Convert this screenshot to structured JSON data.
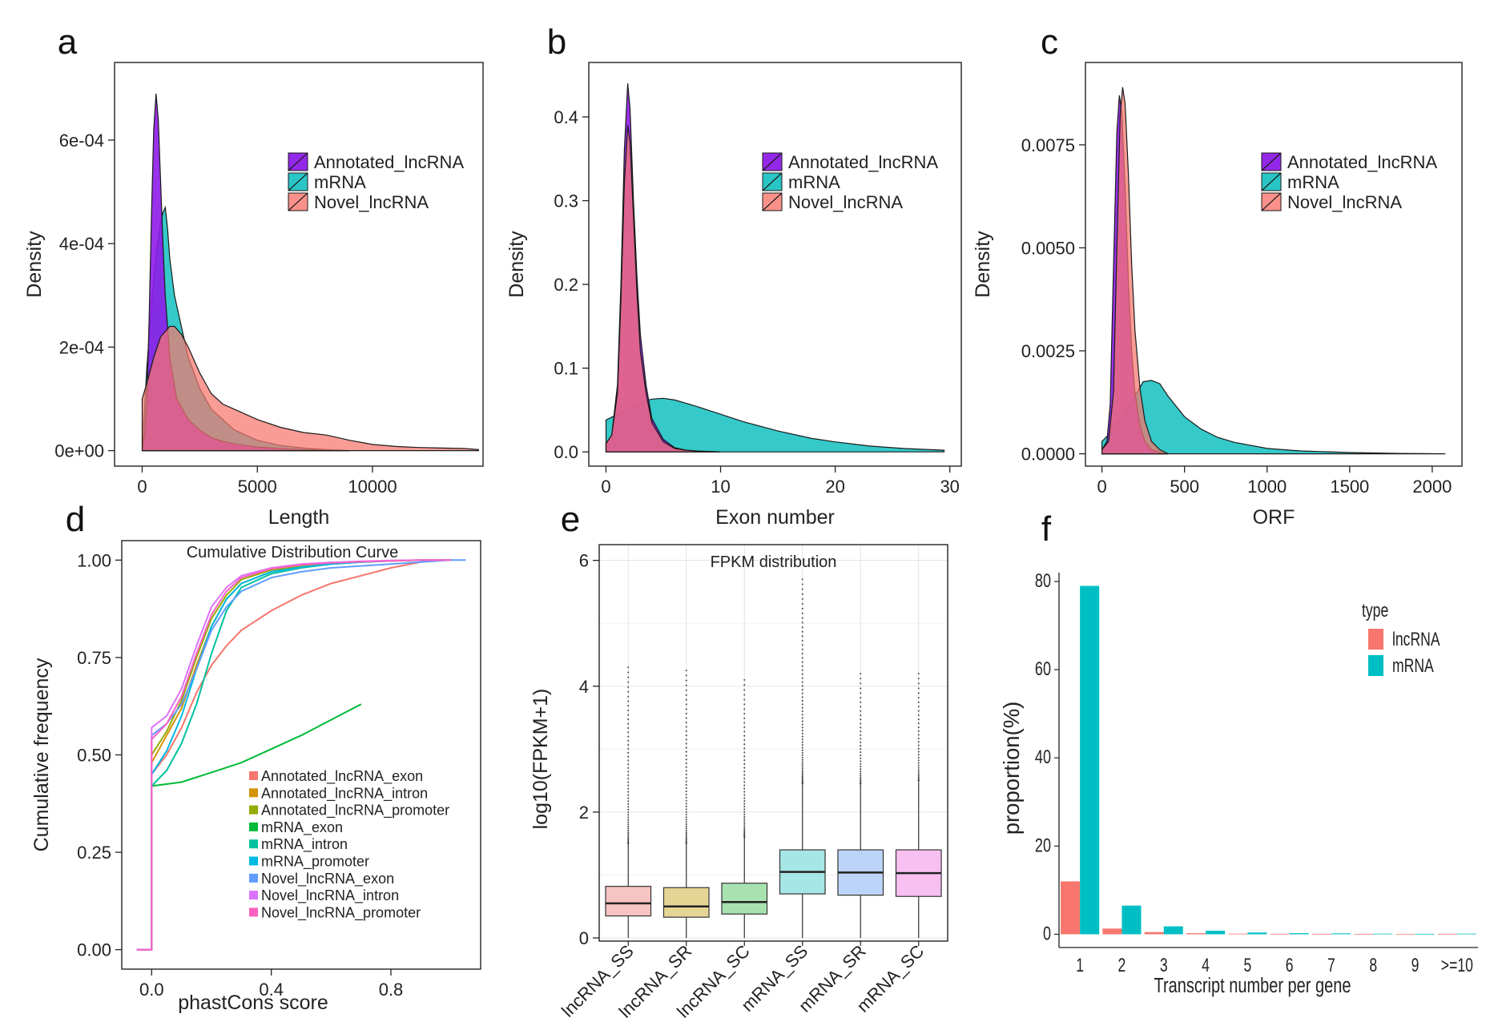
{
  "chart_data": [
    {
      "panel": "a",
      "type": "area",
      "xlabel": "Length",
      "ylabel": "Density",
      "xticks": [
        "0",
        "5000",
        "10000"
      ],
      "yticks": [
        "0e+00",
        "2e-04",
        "4e-04",
        "6e-04"
      ],
      "xlim": [
        -1200,
        14800
      ],
      "ylim": [
        -3e-05,
        0.00075
      ],
      "legend_position": "top-right",
      "series": [
        {
          "name": "Annotated_lncRNA",
          "color": "#8e1ce8",
          "x": [
            0,
            100,
            200,
            300,
            400,
            500,
            600,
            700,
            800,
            900,
            1000,
            1200,
            1500,
            2000,
            2500,
            3000,
            3500,
            4000,
            4500,
            5000,
            6000,
            7000,
            8000,
            9000
          ],
          "y": [
            0.0,
            3e-05,
            0.0001,
            0.00025,
            0.00045,
            0.00062,
            0.00069,
            0.00064,
            0.00052,
            0.0004,
            0.0003,
            0.00018,
            0.0001,
            6e-05,
            4e-05,
            2.5e-05,
            1.8e-05,
            1.3e-05,
            1e-05,
            7e-06,
            4e-06,
            2e-06,
            1e-06,
            0.0
          ]
        },
        {
          "name": "mRNA",
          "color": "#1fc3c3",
          "x": [
            0,
            100,
            200,
            400,
            600,
            800,
            900,
            1000,
            1100,
            1200,
            1400,
            1600,
            1800,
            2000,
            2500,
            3000,
            3500,
            4000,
            5000,
            6000,
            7000,
            8000,
            9000
          ],
          "y": [
            0.0,
            8e-05,
            0.00016,
            0.00028,
            0.00038,
            0.00044,
            0.00046,
            0.00047,
            0.00043,
            0.00037,
            0.0003,
            0.00026,
            0.00022,
            0.00018,
            0.00012,
            8e-05,
            6e-05,
            4e-05,
            2e-05,
            1e-05,
            5e-06,
            2e-06,
            0.0
          ]
        },
        {
          "name": "Novel_lncRNA",
          "color": "#f8766d",
          "x": [
            0,
            200,
            500,
            800,
            1000,
            1200,
            1400,
            1700,
            2000,
            2500,
            3000,
            3500,
            4000,
            5000,
            6000,
            7000,
            8000,
            9000,
            10000,
            11000,
            12000,
            13000,
            14000,
            14600
          ],
          "y": [
            0.0001,
            0.00013,
            0.00018,
            0.00022,
            0.00023,
            0.00024,
            0.00024,
            0.000225,
            0.0002,
            0.00015,
            0.00011,
            9e-05,
            8e-05,
            6e-05,
            4.5e-05,
            3.5e-05,
            3e-05,
            2e-05,
            1.2e-05,
            8e-06,
            6e-06,
            5e-06,
            4e-06,
            2e-06
          ]
        }
      ]
    },
    {
      "panel": "b",
      "type": "area",
      "xlabel": "Exon number",
      "ylabel": "Density",
      "xticks": [
        "0",
        "10",
        "20",
        "30"
      ],
      "yticks": [
        "0.0",
        "0.1",
        "0.2",
        "0.3",
        "0.4"
      ],
      "xlim": [
        -1.5,
        31
      ],
      "ylim": [
        -0.017,
        0.465
      ],
      "legend_position": "top-right",
      "series": [
        {
          "name": "Annotated_lncRNA",
          "color": "#8e1ce8",
          "x": [
            0,
            0.5,
            1,
            1.3,
            1.6,
            1.9,
            2.1,
            2.4,
            2.7,
            3.0,
            3.5,
            4,
            5,
            6,
            7,
            8,
            10
          ],
          "y": [
            0.01,
            0.02,
            0.08,
            0.2,
            0.36,
            0.44,
            0.41,
            0.3,
            0.21,
            0.14,
            0.08,
            0.04,
            0.015,
            0.005,
            0.002,
            0.001,
            0.0
          ]
        },
        {
          "name": "mRNA",
          "color": "#1fc3c3",
          "x": [
            0,
            1,
            2,
            3,
            4,
            5,
            6,
            8,
            10,
            12,
            15,
            18,
            20,
            23,
            26,
            29.5
          ],
          "y": [
            0.038,
            0.045,
            0.052,
            0.059,
            0.063,
            0.064,
            0.062,
            0.054,
            0.045,
            0.036,
            0.025,
            0.016,
            0.012,
            0.007,
            0.004,
            0.002
          ]
        },
        {
          "name": "Novel_lncRNA",
          "color": "#f8766d",
          "x": [
            0,
            0.5,
            1,
            1.3,
            1.6,
            1.9,
            2.1,
            2.4,
            2.7,
            3.0,
            3.5,
            4,
            5,
            6,
            7,
            8,
            10
          ],
          "y": [
            0.01,
            0.02,
            0.07,
            0.18,
            0.32,
            0.39,
            0.37,
            0.28,
            0.19,
            0.12,
            0.07,
            0.035,
            0.012,
            0.004,
            0.002,
            0.001,
            0.0
          ]
        }
      ]
    },
    {
      "panel": "c",
      "type": "area",
      "xlabel": "ORF",
      "ylabel": "Density",
      "xticks": [
        "0",
        "500",
        "1000",
        "1500",
        "2000"
      ],
      "yticks": [
        "0.0000",
        "0.0025",
        "0.0050",
        "0.0075"
      ],
      "xlim": [
        -100,
        2180
      ],
      "ylim": [
        -0.0003,
        0.0095
      ],
      "legend_position": "top-right",
      "series": [
        {
          "name": "Annotated_lncRNA",
          "color": "#8e1ce8",
          "x": [
            0,
            30,
            50,
            70,
            90,
            105,
            120,
            140,
            160,
            180,
            200,
            230,
            260,
            300,
            350,
            400
          ],
          "y": [
            0.0001,
            0.0003,
            0.0012,
            0.0045,
            0.0078,
            0.0087,
            0.0083,
            0.0065,
            0.0042,
            0.0025,
            0.0015,
            0.0007,
            0.0003,
            0.0001,
            3e-05,
            0.0
          ]
        },
        {
          "name": "mRNA",
          "color": "#1fc3c3",
          "x": [
            0,
            50,
            100,
            150,
            200,
            250,
            300,
            350,
            400,
            500,
            600,
            700,
            800,
            1000,
            1200,
            1500,
            1800,
            2080
          ],
          "y": [
            0.0003,
            0.0005,
            0.0008,
            0.0011,
            0.0014,
            0.00175,
            0.00178,
            0.0017,
            0.0014,
            0.0009,
            0.0006,
            0.0004,
            0.00028,
            0.00013,
            7e-05,
            3e-05,
            1e-05,
            0.0
          ]
        },
        {
          "name": "Novel_lncRNA",
          "color": "#f8766d",
          "x": [
            0,
            40,
            70,
            90,
            110,
            125,
            140,
            160,
            180,
            200,
            230,
            260,
            300,
            350,
            400
          ],
          "y": [
            0.0001,
            0.0003,
            0.0015,
            0.005,
            0.0082,
            0.0089,
            0.0085,
            0.0068,
            0.0046,
            0.003,
            0.0016,
            0.0008,
            0.0003,
            0.0001,
            0.0
          ]
        }
      ]
    },
    {
      "panel": "d",
      "type": "line",
      "title": "Cumulative Distribution Curve",
      "xlabel": "phastCons score",
      "ylabel": "Cumulative frequency",
      "xticks": [
        "0.0",
        "0.4",
        "0.8"
      ],
      "yticks": [
        "0.00",
        "0.25",
        "0.50",
        "0.75",
        "1.00"
      ],
      "xlim": [
        -0.1,
        1.1
      ],
      "ylim": [
        -0.05,
        1.05
      ],
      "legend_position": "bottom-right",
      "series": [
        {
          "name": "Annotated_lncRNA_exon",
          "color": "#f8766d",
          "x": [
            -0.05,
            0,
            0,
            0.05,
            0.1,
            0.15,
            0.2,
            0.25,
            0.3,
            0.4,
            0.5,
            0.6,
            0.7,
            0.8,
            0.9,
            0.95
          ],
          "y": [
            0,
            0,
            0.45,
            0.5,
            0.57,
            0.66,
            0.73,
            0.78,
            0.82,
            0.87,
            0.91,
            0.94,
            0.96,
            0.98,
            0.995,
            1.0
          ]
        },
        {
          "name": "Annotated_lncRNA_intron",
          "color": "#d39200",
          "x": [
            -0.05,
            0,
            0,
            0.05,
            0.1,
            0.15,
            0.2,
            0.25,
            0.3,
            0.4,
            0.5,
            0.6,
            0.7,
            0.8,
            0.9,
            1.0
          ],
          "y": [
            0,
            0,
            0.48,
            0.55,
            0.62,
            0.73,
            0.83,
            0.9,
            0.94,
            0.97,
            0.985,
            0.99,
            0.995,
            0.998,
            1.0,
            1.0
          ]
        },
        {
          "name": "Annotated_lncRNA_promoter",
          "color": "#93aa00",
          "x": [
            -0.05,
            0,
            0,
            0.05,
            0.1,
            0.15,
            0.2,
            0.25,
            0.3,
            0.4,
            0.5,
            0.6,
            0.7,
            0.8,
            0.9,
            1.0
          ],
          "y": [
            0,
            0,
            0.5,
            0.56,
            0.64,
            0.75,
            0.85,
            0.91,
            0.95,
            0.975,
            0.985,
            0.99,
            0.995,
            0.998,
            1.0,
            1.0
          ]
        },
        {
          "name": "mRNA_exon",
          "color": "#00ba38",
          "x": [
            -0.05,
            0,
            0,
            0.1,
            0.2,
            0.3,
            0.4,
            0.5,
            0.6,
            0.7
          ],
          "y": [
            0,
            0,
            0.42,
            0.43,
            0.455,
            0.48,
            0.515,
            0.55,
            0.59,
            0.63
          ]
        },
        {
          "name": "mRNA_intron",
          "color": "#00c19f",
          "x": [
            -0.05,
            0,
            0,
            0.05,
            0.1,
            0.15,
            0.2,
            0.25,
            0.3,
            0.4,
            0.5,
            0.6,
            0.7,
            0.8,
            0.9,
            1.0
          ],
          "y": [
            0,
            0,
            0.42,
            0.46,
            0.53,
            0.63,
            0.76,
            0.87,
            0.93,
            0.965,
            0.98,
            0.99,
            0.995,
            0.998,
            1.0,
            1.0
          ]
        },
        {
          "name": "mRNA_promoter",
          "color": "#00b9e3",
          "x": [
            -0.05,
            0,
            0,
            0.05,
            0.1,
            0.15,
            0.2,
            0.25,
            0.3,
            0.4,
            0.5,
            0.6,
            0.7,
            0.8,
            0.9,
            1.0
          ],
          "y": [
            0,
            0,
            0.45,
            0.51,
            0.6,
            0.72,
            0.83,
            0.9,
            0.94,
            0.97,
            0.982,
            0.99,
            0.995,
            0.998,
            1.0,
            1.0
          ]
        },
        {
          "name": "Novel_lncRNA_exon",
          "color": "#619cff",
          "x": [
            -0.05,
            0,
            0,
            0.05,
            0.1,
            0.15,
            0.2,
            0.25,
            0.3,
            0.4,
            0.5,
            0.6,
            0.7,
            0.8,
            0.9,
            1.0,
            1.05
          ],
          "y": [
            0,
            0,
            0.55,
            0.58,
            0.63,
            0.72,
            0.82,
            0.88,
            0.92,
            0.955,
            0.97,
            0.98,
            0.985,
            0.99,
            0.995,
            1.0,
            1.0
          ]
        },
        {
          "name": "Novel_lncRNA_intron",
          "color": "#db72fb",
          "x": [
            -0.05,
            0,
            0,
            0.05,
            0.1,
            0.15,
            0.2,
            0.25,
            0.3,
            0.4,
            0.5,
            0.6,
            0.7,
            0.8,
            0.9,
            1.0
          ],
          "y": [
            0,
            0,
            0.57,
            0.6,
            0.67,
            0.78,
            0.88,
            0.93,
            0.96,
            0.98,
            0.99,
            0.994,
            0.997,
            0.999,
            1.0,
            1.0
          ]
        },
        {
          "name": "Novel_lncRNA_promoter",
          "color": "#ff61c3",
          "x": [
            -0.05,
            0,
            0,
            0.05,
            0.1,
            0.15,
            0.2,
            0.25,
            0.3,
            0.4,
            0.5,
            0.6,
            0.7,
            0.8,
            0.9,
            1.0
          ],
          "y": [
            0,
            0,
            0.54,
            0.58,
            0.65,
            0.76,
            0.86,
            0.92,
            0.955,
            0.978,
            0.988,
            0.993,
            0.996,
            0.998,
            1.0,
            1.0
          ]
        }
      ]
    },
    {
      "panel": "e",
      "type": "box",
      "title": "FPKM distribution",
      "xlabel": "",
      "ylabel": "log10(FPKM+1)",
      "yticks": [
        "0",
        "2",
        "4",
        "6"
      ],
      "ylim": [
        -0.05,
        6.25
      ],
      "grid": true,
      "categories": [
        "lncRNA_SS",
        "lncRNA_SR",
        "lncRNA_SC",
        "mRNA_SS",
        "mRNA_SR",
        "mRNA_SC"
      ],
      "colors": [
        "#f6c4c2",
        "#e6d696",
        "#a8e2b0",
        "#a6e6e6",
        "#bcd4f8",
        "#f7c0f1"
      ],
      "boxes": [
        {
          "q1": 0.35,
          "median": 0.55,
          "q3": 0.82,
          "whisker_low": 0.0,
          "whisker_high": 1.5,
          "max": 4.3
        },
        {
          "q1": 0.33,
          "median": 0.5,
          "q3": 0.8,
          "whisker_low": 0.0,
          "whisker_high": 1.5,
          "max": 4.25
        },
        {
          "q1": 0.38,
          "median": 0.57,
          "q3": 0.87,
          "whisker_low": 0.0,
          "whisker_high": 1.6,
          "max": 4.1
        },
        {
          "q1": 0.7,
          "median": 1.05,
          "q3": 1.4,
          "whisker_low": 0.0,
          "whisker_high": 2.45,
          "max": 5.7
        },
        {
          "q1": 0.68,
          "median": 1.04,
          "q3": 1.4,
          "whisker_low": 0.0,
          "whisker_high": 2.45,
          "max": 4.2
        },
        {
          "q1": 0.66,
          "median": 1.03,
          "q3": 1.4,
          "whisker_low": 0.0,
          "whisker_high": 2.5,
          "max": 4.2
        }
      ]
    },
    {
      "panel": "f",
      "type": "bar",
      "xlabel": "Transcript number per gene",
      "ylabel": "proportion(%)",
      "categories": [
        "1",
        "2",
        "3",
        "4",
        "5",
        "6",
        "7",
        "8",
        "9",
        ">=10"
      ],
      "yticks": [
        "0",
        "20",
        "40",
        "60",
        "80"
      ],
      "ylim": [
        -3,
        82
      ],
      "legend_title": "type",
      "legend_position": "right",
      "series": [
        {
          "name": "lncRNA",
          "color": "#f8766d",
          "values": [
            12,
            1.3,
            0.5,
            0.25,
            0.15,
            0.1,
            0.08,
            0.06,
            0.04,
            0.1
          ]
        },
        {
          "name": "mRNA",
          "color": "#00bfc4",
          "values": [
            79,
            6.5,
            1.8,
            0.8,
            0.4,
            0.25,
            0.2,
            0.15,
            0.1,
            0.15
          ]
        }
      ]
    }
  ],
  "panel_letters": [
    "a",
    "b",
    "c",
    "d",
    "e",
    "f"
  ]
}
